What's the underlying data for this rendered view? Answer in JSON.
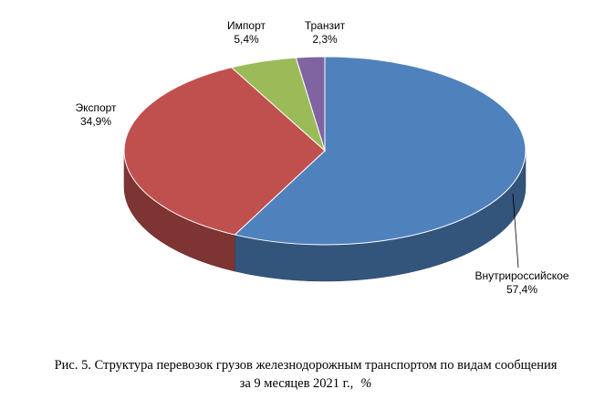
{
  "chart_data": {
    "type": "pie3d",
    "categories": [
      "Внутрироссийское",
      "Экспорт",
      "Импорт",
      "Транзит"
    ],
    "values": [
      57.4,
      34.9,
      5.4,
      2.3
    ],
    "value_labels": [
      "57,4%",
      "34,9%",
      "5,4%",
      "2,3%"
    ],
    "colors": [
      "#4f81bd",
      "#c0504d",
      "#9bbb59",
      "#8064a2"
    ]
  },
  "caption": {
    "line1": "Рис. 5. Структура перевозок грузов железнодорожным транспортом по видам сообщения",
    "line2": "за 9 месяцев 2021 г.,",
    "unit": "%"
  }
}
